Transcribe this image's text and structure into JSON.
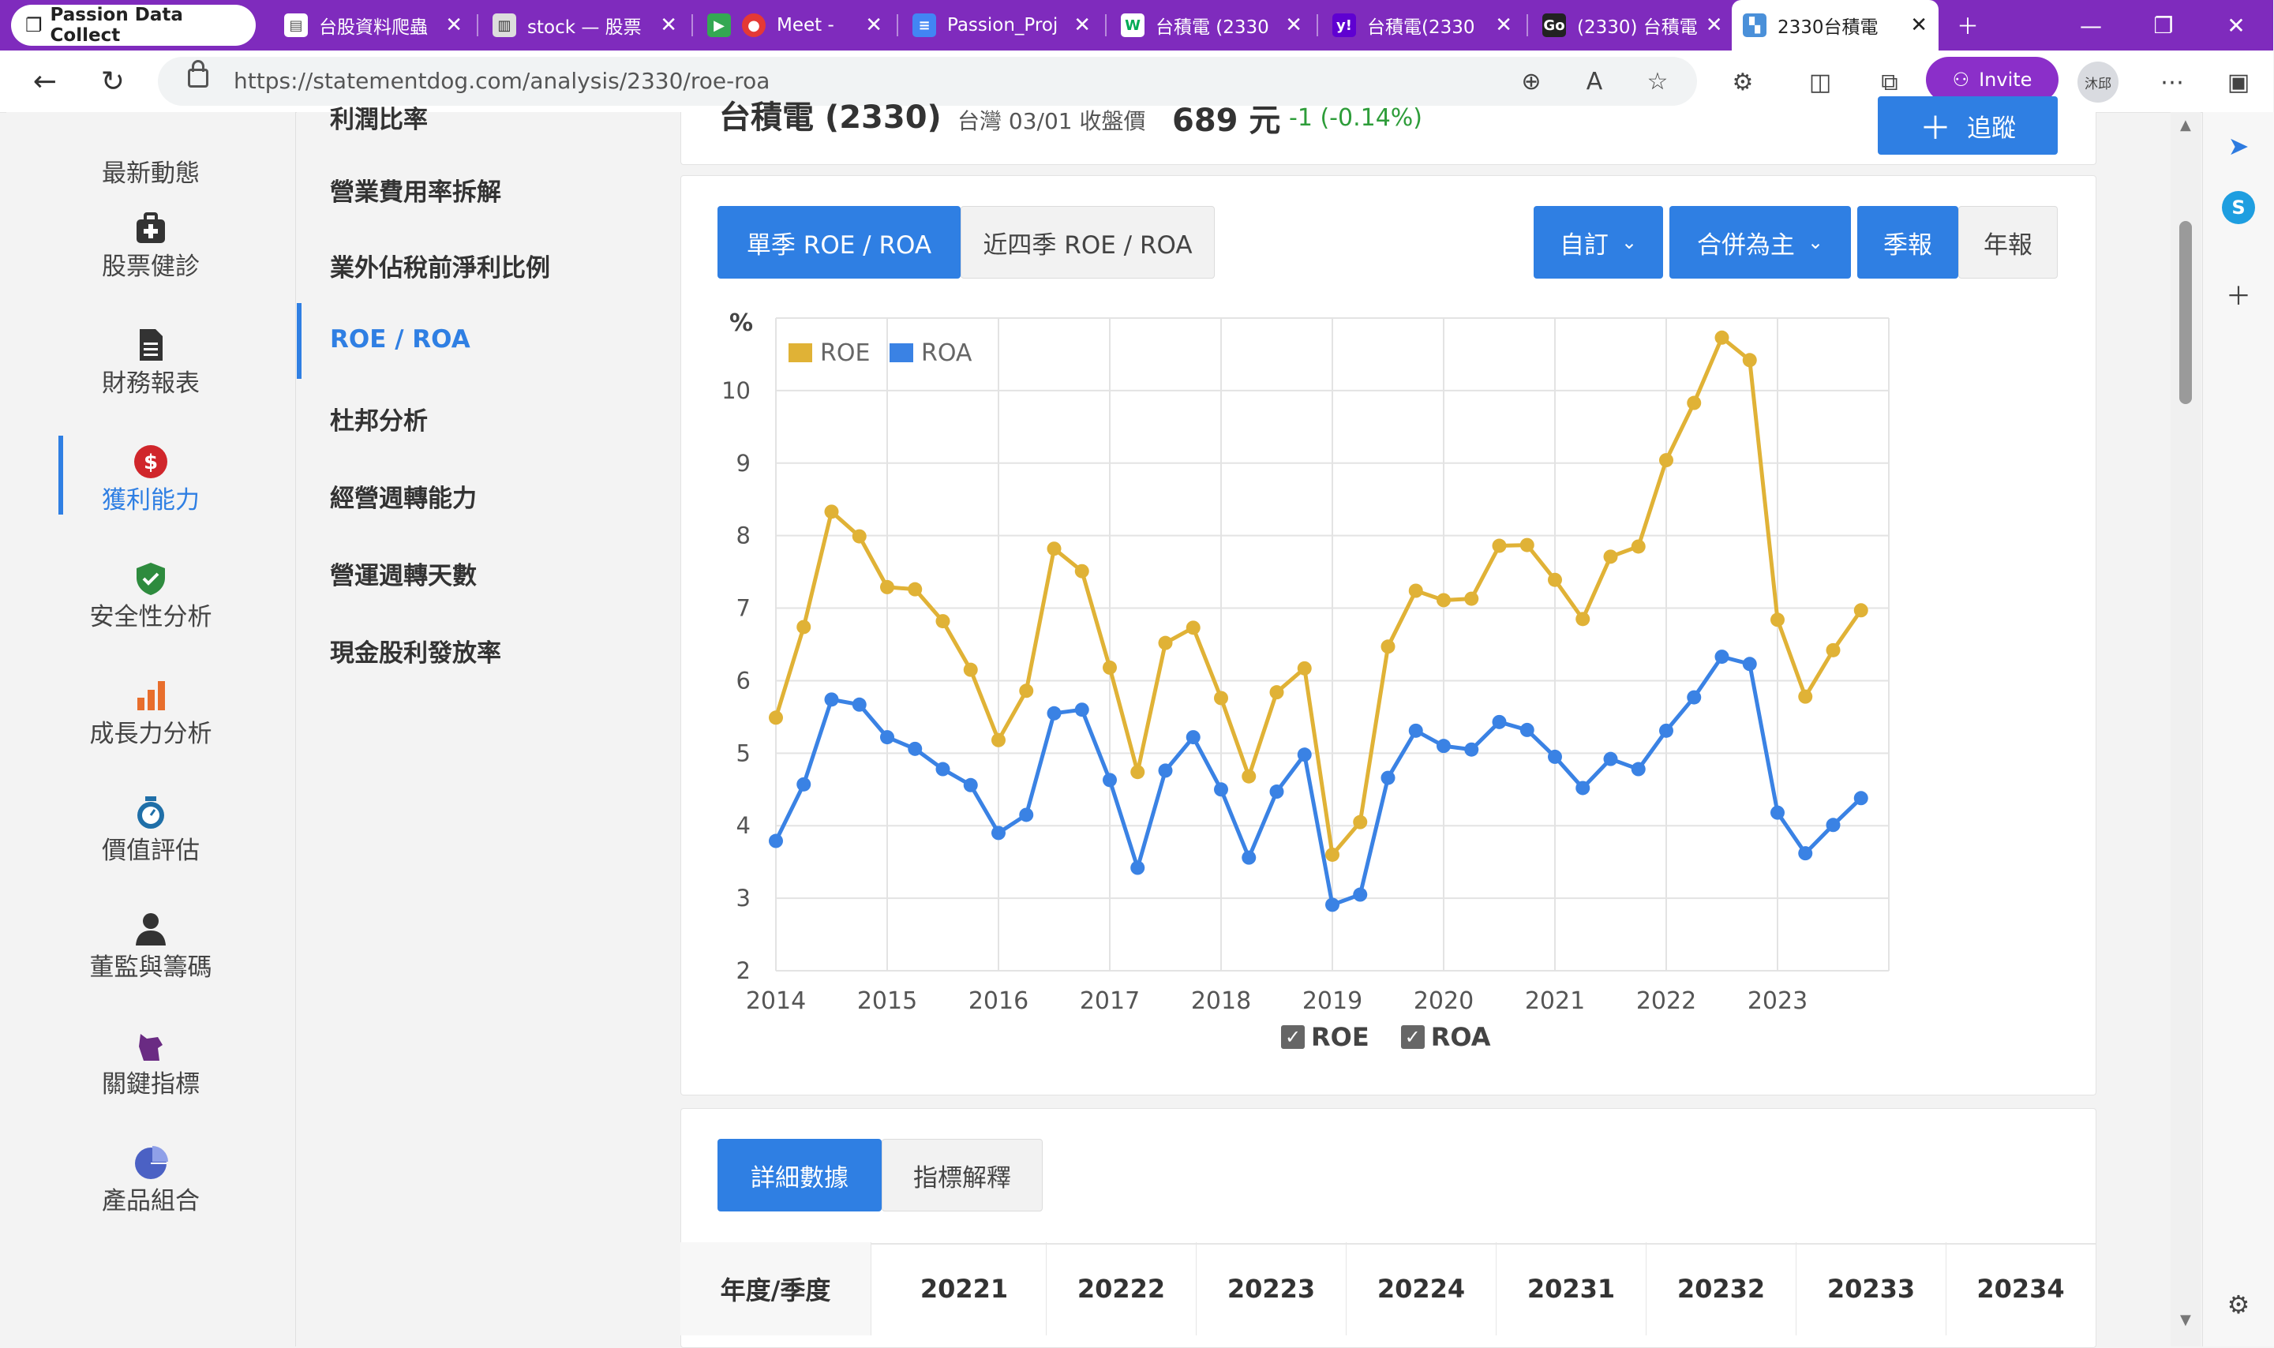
{
  "browser": {
    "profile_label": "Passion Data Collect",
    "tabs": [
      {
        "label": "台股資料爬蟲",
        "icon": "document-icon"
      },
      {
        "label": "stock — 股票",
        "icon": "notebook-icon"
      },
      {
        "label": "Meet - ",
        "icon": "meet-icon"
      },
      {
        "label": "Passion_Proj",
        "icon": "docs-icon"
      },
      {
        "label": "台積電 (2330",
        "icon": "chart-site-icon"
      },
      {
        "label": "台積電(2330",
        "icon": "yahoo-icon"
      },
      {
        "label": "(2330) 台積電",
        "icon": "goodinfo-icon"
      },
      {
        "label": "2330台積電",
        "icon": "statementdog-icon"
      }
    ],
    "url": "https://statementdog.com/analysis/2330/roe-roa",
    "invite_label": "Invite",
    "avatar_label": "沐邱"
  },
  "left_nav": {
    "items": [
      {
        "label": "最新動態",
        "icon": "news-icon"
      },
      {
        "label": "股票健診",
        "icon": "medical-kit-icon"
      },
      {
        "label": "財務報表",
        "icon": "report-icon"
      },
      {
        "label": "獲利能力",
        "icon": "dollar-icon"
      },
      {
        "label": "安全性分析",
        "icon": "shield-icon"
      },
      {
        "label": "成長力分析",
        "icon": "bar-chart-icon"
      },
      {
        "label": "價值評估",
        "icon": "scale-icon"
      },
      {
        "label": "董監與籌碼",
        "icon": "person-icon"
      },
      {
        "label": "關鍵指標",
        "icon": "dog-icon"
      },
      {
        "label": "產品組合",
        "icon": "pie-icon"
      }
    ],
    "active_index": 3
  },
  "sub_nav": {
    "items": [
      "利潤比率",
      "營業費用率拆解",
      "業外佔稅前淨利比例",
      "ROE / ROA",
      "杜邦分析",
      "經營週轉能力",
      "營運週轉天數",
      "現金股利發放率"
    ],
    "active_index": 3
  },
  "header": {
    "stock_title": "台積電 (2330)",
    "price_caption": "台灣 03/01 收盤價",
    "price": "689 元",
    "change": "-1 (-0.14%)",
    "follow_label": "追蹤"
  },
  "chart_controls": {
    "tab_single": "單季 ROE / ROA",
    "tab_four": "近四季 ROE / ROA",
    "custom_label": "自訂",
    "consolidated_label": "合併為主",
    "quarterly_label": "季報",
    "annual_label": "年報"
  },
  "colors": {
    "roe": "#e0b236",
    "roa": "#3a82e4",
    "accent": "#2f7fe3"
  },
  "chart_data": {
    "type": "line",
    "ylabel": "%",
    "ylim": [
      2,
      11
    ],
    "yticks": [
      2,
      3,
      4,
      5,
      6,
      7,
      8,
      9,
      10
    ],
    "xticks": [
      "2014",
      "2015",
      "2016",
      "2017",
      "2018",
      "2019",
      "2020",
      "2021",
      "2022",
      "2023"
    ],
    "x_start_year": 2014,
    "points_per_year": 4,
    "grid": true,
    "legend_position": "top-left",
    "series": [
      {
        "name": "ROE",
        "values": [
          5.49,
          6.74,
          8.33,
          7.99,
          7.29,
          7.26,
          6.82,
          6.15,
          5.18,
          5.86,
          7.82,
          7.51,
          6.18,
          4.74,
          6.52,
          6.73,
          5.76,
          4.68,
          5.84,
          6.17,
          3.6,
          4.05,
          6.47,
          7.24,
          7.11,
          7.13,
          7.86,
          7.87,
          7.39,
          6.85,
          7.71,
          7.85,
          9.04,
          9.83,
          10.73,
          10.42,
          6.84,
          5.78,
          6.42,
          6.97
        ]
      },
      {
        "name": "ROA",
        "values": [
          3.79,
          4.57,
          5.74,
          5.67,
          5.22,
          5.06,
          4.78,
          4.56,
          3.9,
          4.15,
          5.55,
          5.6,
          4.63,
          3.42,
          4.76,
          5.22,
          4.5,
          3.56,
          4.47,
          4.98,
          2.91,
          3.05,
          4.66,
          5.31,
          5.1,
          5.05,
          5.43,
          5.32,
          4.95,
          4.52,
          4.92,
          4.78,
          5.31,
          5.77,
          6.33,
          6.23,
          4.18,
          3.62,
          4.01,
          4.38
        ]
      }
    ],
    "toggles": [
      "ROE",
      "ROA"
    ]
  },
  "table": {
    "tab_details": "詳細數據",
    "tab_explain": "指標解釋",
    "row_header": "年度/季度",
    "columns": [
      "20221",
      "20222",
      "20223",
      "20224",
      "20231",
      "20232",
      "20233",
      "20234"
    ]
  }
}
